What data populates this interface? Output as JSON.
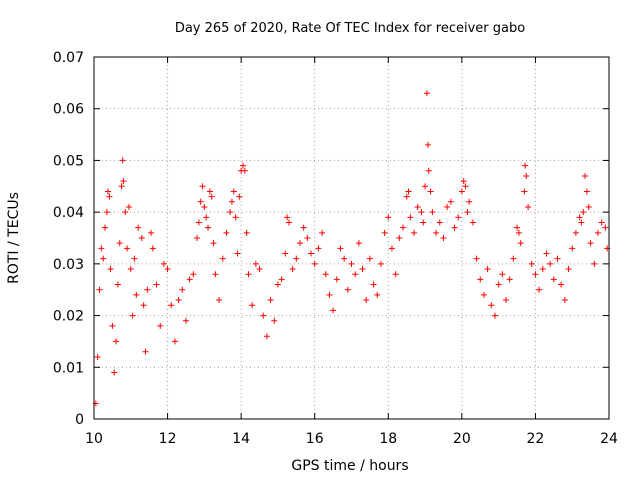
{
  "chart_data": {
    "type": "scatter",
    "title": "Day 265 of 2020, Rate Of TEC Index for receiver gabo",
    "xlabel": "GPS time / hours",
    "ylabel": "ROTI / TECUs",
    "xlim": [
      10,
      24
    ],
    "ylim": [
      0,
      0.07
    ],
    "x_ticks": [
      10,
      12,
      14,
      16,
      18,
      20,
      22,
      24
    ],
    "x_tick_labels": [
      "10",
      "12",
      "14",
      "16",
      "18",
      "20",
      "22",
      "24"
    ],
    "y_ticks": [
      0,
      0.01,
      0.02,
      0.03,
      0.04,
      0.05,
      0.06,
      0.07
    ],
    "y_tick_labels": [
      "0",
      "0.01",
      "0.02",
      "0.03",
      "0.04",
      "0.05",
      "0.06",
      "0.07"
    ],
    "grid": true,
    "marker": "plus",
    "color": "#ff0000",
    "series": [
      {
        "points": [
          [
            10.05,
            0.003
          ],
          [
            10.1,
            0.012
          ],
          [
            10.15,
            0.025
          ],
          [
            10.2,
            0.033
          ],
          [
            10.25,
            0.031
          ],
          [
            10.3,
            0.037
          ],
          [
            10.35,
            0.04
          ],
          [
            10.38,
            0.044
          ],
          [
            10.42,
            0.043
          ],
          [
            10.45,
            0.029
          ],
          [
            10.5,
            0.018
          ],
          [
            10.55,
            0.009
          ],
          [
            10.6,
            0.015
          ],
          [
            10.65,
            0.026
          ],
          [
            10.7,
            0.034
          ],
          [
            10.75,
            0.045
          ],
          [
            10.78,
            0.05
          ],
          [
            10.8,
            0.046
          ],
          [
            10.85,
            0.04
          ],
          [
            10.9,
            0.033
          ],
          [
            10.95,
            0.041
          ],
          [
            11.0,
            0.029
          ],
          [
            11.05,
            0.02
          ],
          [
            11.1,
            0.031
          ],
          [
            11.15,
            0.024
          ],
          [
            11.2,
            0.037
          ],
          [
            11.3,
            0.035
          ],
          [
            11.35,
            0.022
          ],
          [
            11.4,
            0.013
          ],
          [
            11.45,
            0.025
          ],
          [
            11.55,
            0.036
          ],
          [
            11.6,
            0.033
          ],
          [
            11.7,
            0.026
          ],
          [
            11.8,
            0.018
          ],
          [
            11.9,
            0.03
          ],
          [
            12.0,
            0.029
          ],
          [
            12.1,
            0.022
          ],
          [
            12.2,
            0.015
          ],
          [
            12.3,
            0.023
          ],
          [
            12.4,
            0.025
          ],
          [
            12.5,
            0.019
          ],
          [
            12.6,
            0.027
          ],
          [
            12.7,
            0.028
          ],
          [
            12.8,
            0.035
          ],
          [
            12.85,
            0.038
          ],
          [
            12.9,
            0.042
          ],
          [
            12.95,
            0.045
          ],
          [
            13.0,
            0.041
          ],
          [
            13.05,
            0.039
          ],
          [
            13.1,
            0.037
          ],
          [
            13.15,
            0.044
          ],
          [
            13.2,
            0.043
          ],
          [
            13.25,
            0.034
          ],
          [
            13.3,
            0.028
          ],
          [
            13.4,
            0.023
          ],
          [
            13.5,
            0.031
          ],
          [
            13.6,
            0.036
          ],
          [
            13.7,
            0.04
          ],
          [
            13.75,
            0.042
          ],
          [
            13.8,
            0.044
          ],
          [
            13.85,
            0.039
          ],
          [
            13.9,
            0.032
          ],
          [
            13.95,
            0.043
          ],
          [
            14.0,
            0.048
          ],
          [
            14.05,
            0.049
          ],
          [
            14.1,
            0.048
          ],
          [
            14.15,
            0.036
          ],
          [
            14.2,
            0.028
          ],
          [
            14.3,
            0.022
          ],
          [
            14.4,
            0.03
          ],
          [
            14.5,
            0.029
          ],
          [
            14.6,
            0.02
          ],
          [
            14.7,
            0.016
          ],
          [
            14.8,
            0.023
          ],
          [
            14.9,
            0.019
          ],
          [
            15.0,
            0.026
          ],
          [
            15.1,
            0.027
          ],
          [
            15.2,
            0.032
          ],
          [
            15.25,
            0.039
          ],
          [
            15.3,
            0.038
          ],
          [
            15.4,
            0.029
          ],
          [
            15.5,
            0.031
          ],
          [
            15.6,
            0.034
          ],
          [
            15.7,
            0.037
          ],
          [
            15.8,
            0.035
          ],
          [
            15.9,
            0.032
          ],
          [
            16.0,
            0.03
          ],
          [
            16.1,
            0.033
          ],
          [
            16.2,
            0.036
          ],
          [
            16.3,
            0.028
          ],
          [
            16.4,
            0.024
          ],
          [
            16.5,
            0.021
          ],
          [
            16.6,
            0.027
          ],
          [
            16.7,
            0.033
          ],
          [
            16.8,
            0.031
          ],
          [
            16.9,
            0.025
          ],
          [
            17.0,
            0.03
          ],
          [
            17.1,
            0.028
          ],
          [
            17.2,
            0.034
          ],
          [
            17.3,
            0.029
          ],
          [
            17.4,
            0.023
          ],
          [
            17.5,
            0.031
          ],
          [
            17.6,
            0.026
          ],
          [
            17.7,
            0.024
          ],
          [
            17.8,
            0.03
          ],
          [
            17.9,
            0.036
          ],
          [
            18.0,
            0.039
          ],
          [
            18.1,
            0.033
          ],
          [
            18.2,
            0.028
          ],
          [
            18.3,
            0.035
          ],
          [
            18.4,
            0.037
          ],
          [
            18.5,
            0.043
          ],
          [
            18.55,
            0.044
          ],
          [
            18.6,
            0.039
          ],
          [
            18.7,
            0.036
          ],
          [
            18.8,
            0.041
          ],
          [
            18.9,
            0.04
          ],
          [
            18.95,
            0.038
          ],
          [
            19.0,
            0.045
          ],
          [
            19.05,
            0.063
          ],
          [
            19.08,
            0.053
          ],
          [
            19.1,
            0.048
          ],
          [
            19.15,
            0.044
          ],
          [
            19.2,
            0.04
          ],
          [
            19.3,
            0.036
          ],
          [
            19.4,
            0.038
          ],
          [
            19.5,
            0.035
          ],
          [
            19.6,
            0.041
          ],
          [
            19.7,
            0.042
          ],
          [
            19.8,
            0.037
          ],
          [
            19.9,
            0.039
          ],
          [
            20.0,
            0.044
          ],
          [
            20.05,
            0.046
          ],
          [
            20.1,
            0.045
          ],
          [
            20.15,
            0.04
          ],
          [
            20.2,
            0.042
          ],
          [
            20.3,
            0.038
          ],
          [
            20.4,
            0.031
          ],
          [
            20.5,
            0.027
          ],
          [
            20.6,
            0.024
          ],
          [
            20.7,
            0.029
          ],
          [
            20.8,
            0.022
          ],
          [
            20.9,
            0.02
          ],
          [
            21.0,
            0.026
          ],
          [
            21.1,
            0.028
          ],
          [
            21.2,
            0.023
          ],
          [
            21.3,
            0.027
          ],
          [
            21.4,
            0.031
          ],
          [
            21.5,
            0.037
          ],
          [
            21.55,
            0.036
          ],
          [
            21.6,
            0.034
          ],
          [
            21.7,
            0.044
          ],
          [
            21.72,
            0.049
          ],
          [
            21.75,
            0.047
          ],
          [
            21.8,
            0.041
          ],
          [
            21.9,
            0.03
          ],
          [
            22.0,
            0.028
          ],
          [
            22.1,
            0.025
          ],
          [
            22.2,
            0.029
          ],
          [
            22.3,
            0.032
          ],
          [
            22.4,
            0.03
          ],
          [
            22.5,
            0.027
          ],
          [
            22.6,
            0.031
          ],
          [
            22.7,
            0.026
          ],
          [
            22.8,
            0.023
          ],
          [
            22.9,
            0.029
          ],
          [
            23.0,
            0.033
          ],
          [
            23.1,
            0.036
          ],
          [
            23.2,
            0.039
          ],
          [
            23.25,
            0.038
          ],
          [
            23.3,
            0.04
          ],
          [
            23.35,
            0.047
          ],
          [
            23.4,
            0.044
          ],
          [
            23.45,
            0.041
          ],
          [
            23.5,
            0.034
          ],
          [
            23.6,
            0.03
          ],
          [
            23.7,
            0.036
          ],
          [
            23.8,
            0.038
          ],
          [
            23.9,
            0.037
          ],
          [
            23.95,
            0.033
          ]
        ]
      }
    ]
  }
}
